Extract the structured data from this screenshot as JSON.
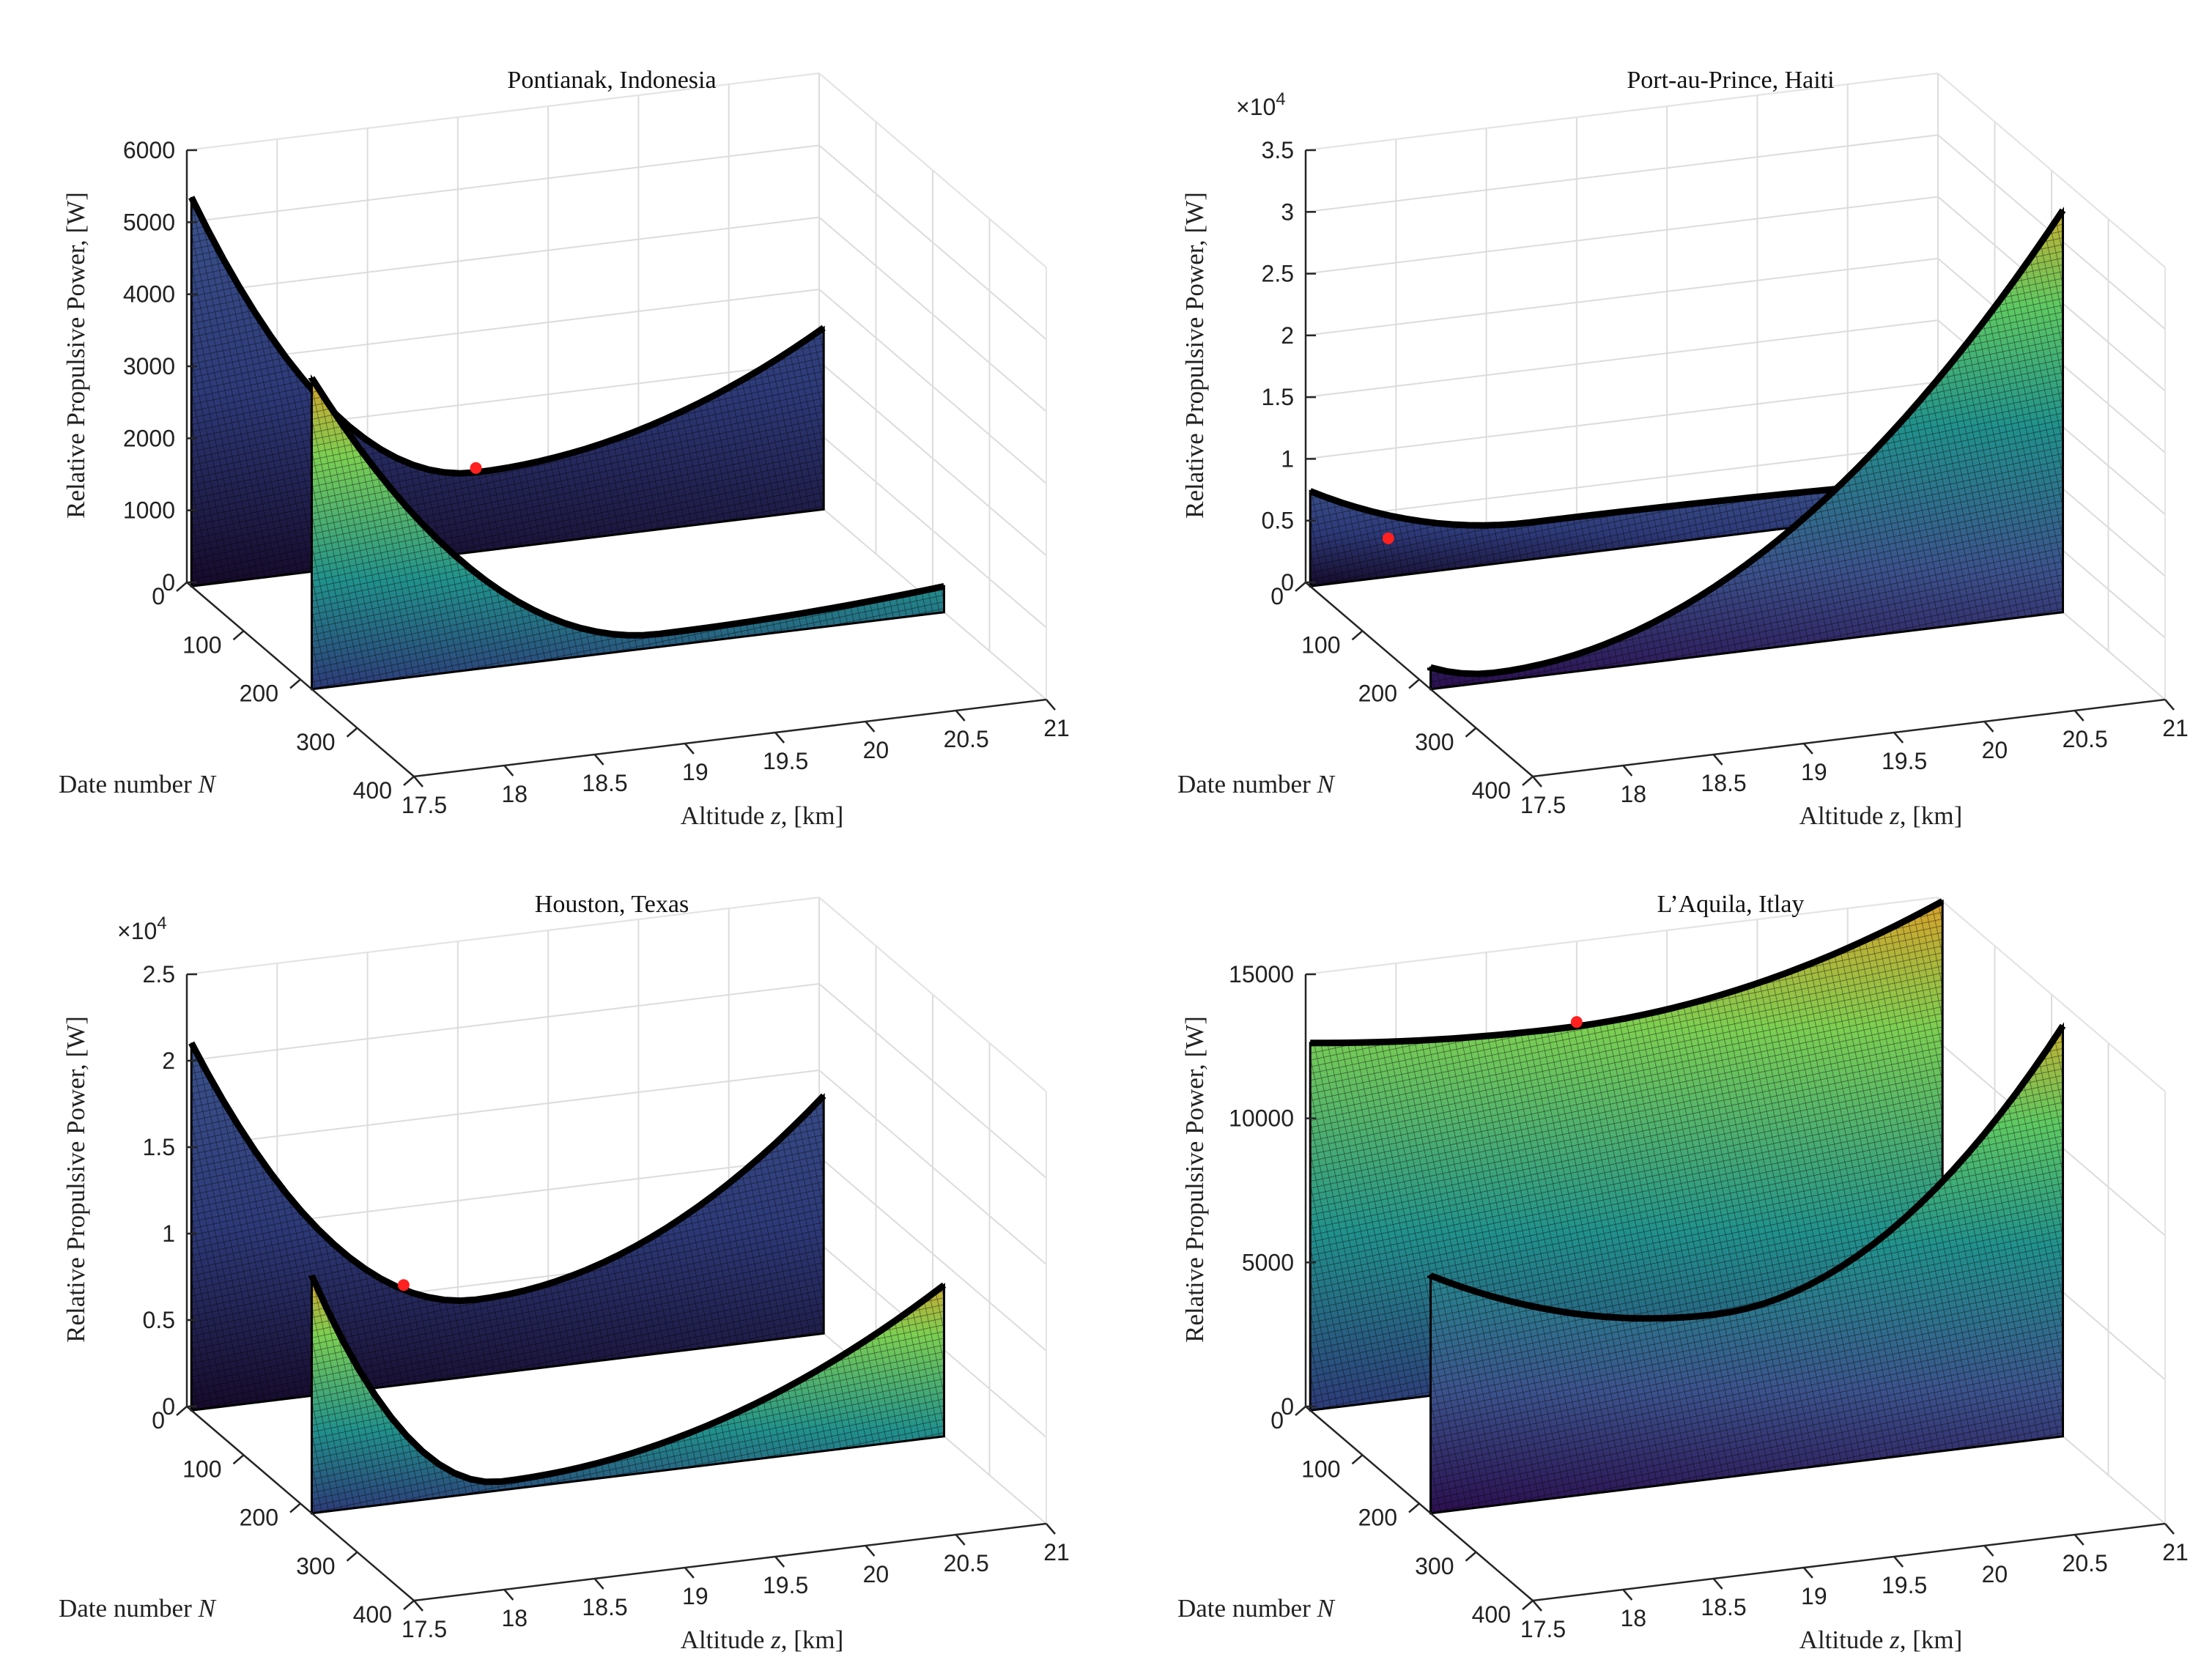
{
  "figure": {
    "colormap": [
      "#440154",
      "#3b528b",
      "#21918c",
      "#5ec962",
      "#fde725"
    ],
    "optimum_marker_color": "#ff2020",
    "mesh_color": "#000000"
  },
  "chart_data": [
    {
      "type": "surface",
      "id": "pontianak",
      "title": "Pontianak, Indonesia",
      "xlabel": "Altitude z, [km]",
      "xlabel_prefix": "Altitude ",
      "xlabel_var": "z",
      "xlabel_suffix": ", [km]",
      "ylabel": "Date number N",
      "ylabel_prefix": "Date number ",
      "ylabel_var": "N",
      "zlabel": "Relative Propulsive Power, [W]",
      "x_ticks": [
        "17.5",
        "18",
        "18.5",
        "19",
        "19.5",
        "20",
        "20.5",
        "21"
      ],
      "y_ticks": [
        "0",
        "100",
        "200",
        "300",
        "400"
      ],
      "z_ticks": [
        "0",
        "1000",
        "2000",
        "3000",
        "4000",
        "5000",
        "6000"
      ],
      "z_exponent": "",
      "xlim": [
        17.5,
        21
      ],
      "ylim": [
        0,
        400
      ],
      "zlim": [
        0,
        6000
      ],
      "optimum": {
        "z_km": 19.1,
        "N": 0,
        "power": 1100
      },
      "peak_power": 5300
    },
    {
      "type": "surface",
      "id": "port-au-prince",
      "title": "Port-au-Prince, Haiti",
      "xlabel": "Altitude z, [km]",
      "xlabel_prefix": "Altitude ",
      "xlabel_var": "z",
      "xlabel_suffix": ", [km]",
      "ylabel": "Date number N",
      "ylabel_prefix": "Date number ",
      "ylabel_var": "N",
      "zlabel": "Relative Propulsive Power, [W]",
      "x_ticks": [
        "17.5",
        "18",
        "18.5",
        "19",
        "19.5",
        "20",
        "20.5",
        "21"
      ],
      "y_ticks": [
        "0",
        "100",
        "200",
        "300",
        "400"
      ],
      "z_ticks": [
        "0",
        "0.5",
        "1",
        "1.5",
        "2",
        "2.5",
        "3",
        "3.5"
      ],
      "z_exponent": "×10",
      "z_exponent_power": "4",
      "xlim": [
        17.5,
        21
      ],
      "ylim": [
        0,
        400
      ],
      "zlim": [
        0,
        3.5
      ],
      "optimum": {
        "z_km": 17.8,
        "N": 50,
        "power": 0.5
      },
      "peak_power": 3.2
    },
    {
      "type": "surface",
      "id": "houston",
      "title": "Houston, Texas",
      "xlabel": "Altitude z, [km]",
      "xlabel_prefix": "Altitude ",
      "xlabel_var": "z",
      "xlabel_suffix": ", [km]",
      "ylabel": "Date number N",
      "ylabel_prefix": "Date number ",
      "ylabel_var": "N",
      "zlabel": "Relative Propulsive Power, [W]",
      "x_ticks": [
        "17.5",
        "18",
        "18.5",
        "19",
        "19.5",
        "20",
        "20.5",
        "21"
      ],
      "y_ticks": [
        "0",
        "100",
        "200",
        "300",
        "400"
      ],
      "z_ticks": [
        "0",
        "0.5",
        "1",
        "1.5",
        "2",
        "2.5"
      ],
      "z_exponent": "×10",
      "z_exponent_power": "4",
      "xlim": [
        17.5,
        21
      ],
      "ylim": [
        0,
        400
      ],
      "zlim": [
        0,
        2.5
      ],
      "optimum": {
        "z_km": 18.7,
        "N": 0,
        "power": 0.55
      },
      "peak_power": 2.2
    },
    {
      "type": "surface",
      "id": "laquila",
      "title": "L’Aquila, Itlay",
      "xlabel": "Altitude z, [km]",
      "xlabel_prefix": "Altitude ",
      "xlabel_var": "z",
      "xlabel_suffix": ", [km]",
      "ylabel": "Date number N",
      "ylabel_prefix": "Date number ",
      "ylabel_var": "N",
      "zlabel": "Relative Propulsive Power, [W]",
      "x_ticks": [
        "17.5",
        "18",
        "18.5",
        "19",
        "19.5",
        "20",
        "20.5",
        "21"
      ],
      "y_ticks": [
        "0",
        "100",
        "200",
        "300",
        "400"
      ],
      "z_ticks": [
        "0",
        "5000",
        "10000",
        "15000"
      ],
      "z_exponent": "",
      "xlim": [
        17.5,
        21
      ],
      "ylim": [
        0,
        400
      ],
      "zlim": [
        0,
        15000
      ],
      "optimum": {
        "z_km": 19.0,
        "N": 0,
        "power": 12200
      },
      "peak_power": 15500
    }
  ]
}
